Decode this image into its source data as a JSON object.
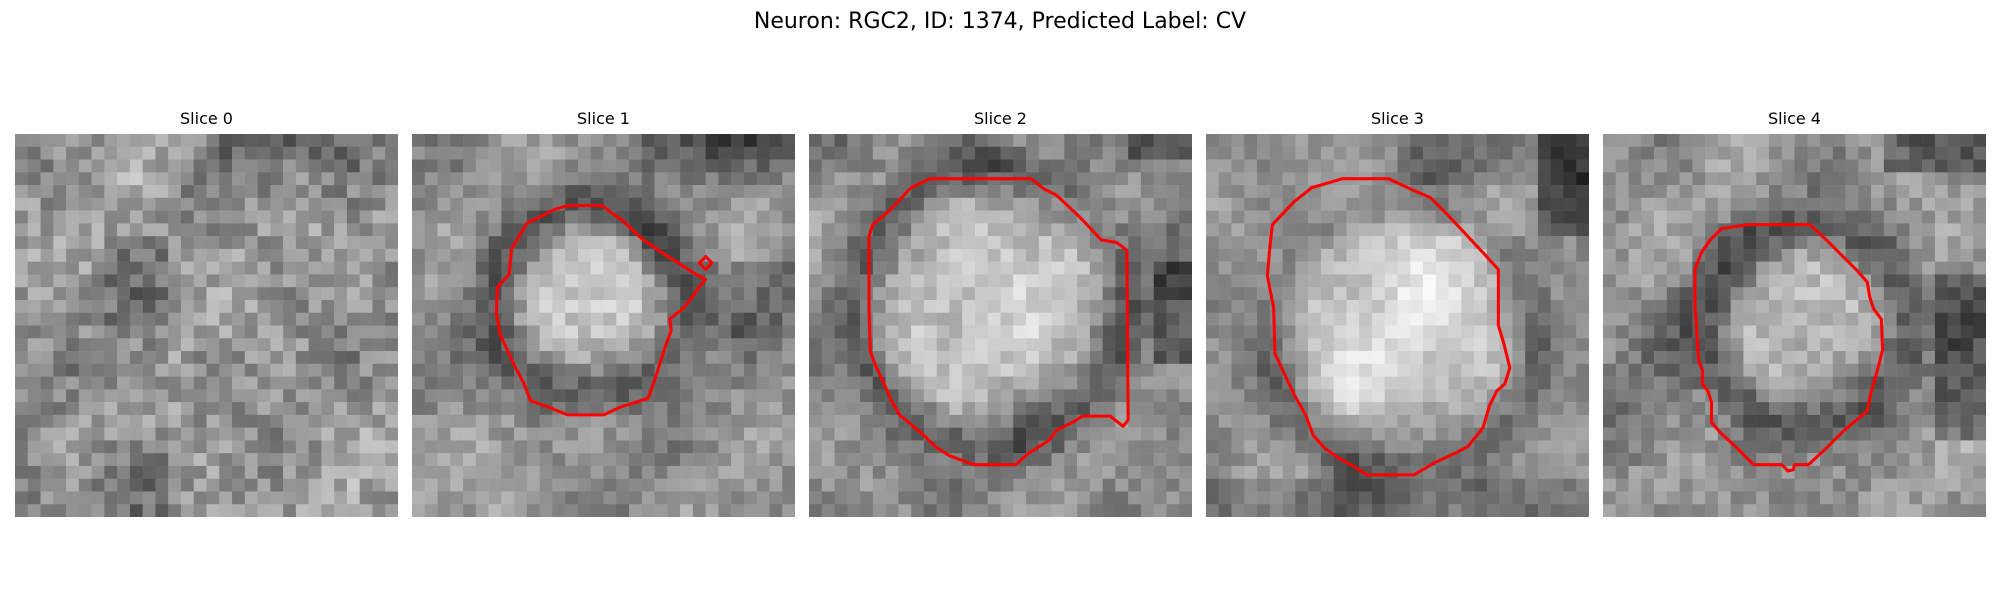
{
  "figure": {
    "title": "Neuron: RGC2, ID: 1374, Predicted Label: CV"
  },
  "panels": [
    {
      "title": "Slice 0",
      "pattern": "noise",
      "has_contour": false,
      "contour_color": "#ff0000"
    },
    {
      "title": "Slice 1",
      "pattern": "small-bright-cell-with-dark-ring",
      "has_contour": true,
      "contour_color": "#ff0000"
    },
    {
      "title": "Slice 2",
      "pattern": "large-bright-cell",
      "has_contour": true,
      "contour_color": "#ff0000"
    },
    {
      "title": "Slice 3",
      "pattern": "largest-bright-cell",
      "has_contour": true,
      "contour_color": "#ff0000"
    },
    {
      "title": "Slice 4",
      "pattern": "medium-cell-with-dark-ring",
      "has_contour": true,
      "contour_color": "#ff0000"
    }
  ]
}
